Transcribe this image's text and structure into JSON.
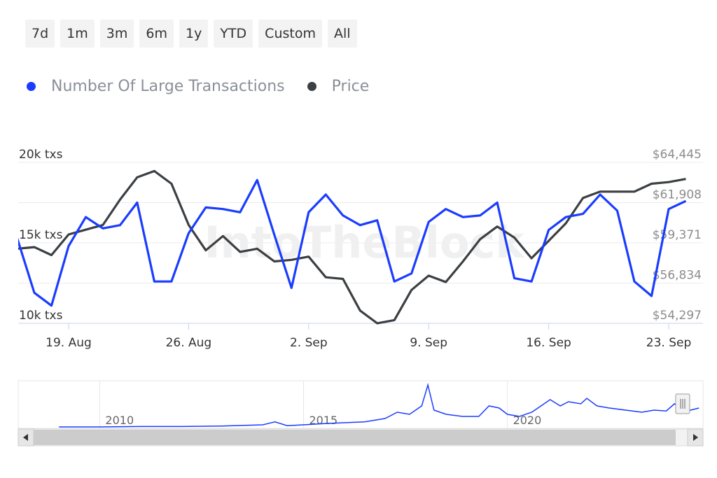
{
  "range_selector": {
    "buttons": [
      "7d",
      "1m",
      "3m",
      "6m",
      "1y",
      "YTD",
      "Custom",
      "All"
    ]
  },
  "legend": {
    "items": [
      {
        "label": "Number Of Large Transactions",
        "color": "#1a3cff"
      },
      {
        "label": "Price",
        "color": "#3c4043"
      }
    ]
  },
  "watermark": "IntoTheBlock",
  "navigator": {
    "year_labels": [
      "2010",
      "2015",
      "2020"
    ]
  },
  "chart_data": {
    "type": "line",
    "x_tick_labels": [
      "19. Aug",
      "26. Aug",
      "2. Sep",
      "9. Sep",
      "16. Sep",
      "23. Sep"
    ],
    "left_axis": {
      "labels": [
        "20k txs",
        "15k txs",
        "10k txs"
      ],
      "ylim": [
        10000,
        20000
      ]
    },
    "right_axis": {
      "labels": [
        "$64,445",
        "$61,908",
        "$59,371",
        "$56,834",
        "$54,297"
      ],
      "ylim": [
        54297,
        64445
      ]
    },
    "series": [
      {
        "name": "Number Of Large Transactions",
        "color": "#1a3cff",
        "axis": "left",
        "x": [
          "2024-08-16",
          "2024-08-17",
          "2024-08-18",
          "2024-08-19",
          "2024-08-20",
          "2024-08-21",
          "2024-08-22",
          "2024-08-23",
          "2024-08-24",
          "2024-08-25",
          "2024-08-26",
          "2024-08-27",
          "2024-08-28",
          "2024-08-29",
          "2024-08-30",
          "2024-08-31",
          "2024-09-01",
          "2024-09-02",
          "2024-09-03",
          "2024-09-04",
          "2024-09-05",
          "2024-09-06",
          "2024-09-07",
          "2024-09-08",
          "2024-09-09",
          "2024-09-10",
          "2024-09-11",
          "2024-09-12",
          "2024-09-13",
          "2024-09-14",
          "2024-09-15",
          "2024-09-16",
          "2024-09-17",
          "2024-09-18",
          "2024-09-19",
          "2024-09-20",
          "2024-09-21",
          "2024-09-22",
          "2024-09-23",
          "2024-09-24"
        ],
        "values": [
          15300,
          11900,
          11100,
          14800,
          16600,
          15900,
          16100,
          17500,
          12600,
          12600,
          15600,
          17200,
          17100,
          16900,
          18900,
          15500,
          12200,
          16900,
          18000,
          16700,
          16100,
          16400,
          12600,
          13100,
          16300,
          17100,
          16600,
          16700,
          17500,
          12800,
          12600,
          15800,
          16600,
          16800,
          18000,
          17000,
          12600,
          11700,
          17100,
          17600
        ]
      },
      {
        "name": "Price",
        "color": "#3c4043",
        "axis": "right",
        "x": [
          "2024-08-15",
          "2024-08-16",
          "2024-08-17",
          "2024-08-18",
          "2024-08-19",
          "2024-08-20",
          "2024-08-21",
          "2024-08-22",
          "2024-08-23",
          "2024-08-24",
          "2024-08-25",
          "2024-08-26",
          "2024-08-27",
          "2024-08-28",
          "2024-08-29",
          "2024-08-30",
          "2024-08-31",
          "2024-09-01",
          "2024-09-02",
          "2024-09-03",
          "2024-09-04",
          "2024-09-05",
          "2024-09-06",
          "2024-09-07",
          "2024-09-08",
          "2024-09-09",
          "2024-09-10",
          "2024-09-11",
          "2024-09-12",
          "2024-09-13",
          "2024-09-14",
          "2024-09-15",
          "2024-09-16",
          "2024-09-17",
          "2024-09-18",
          "2024-09-19",
          "2024-09-20",
          "2024-09-21",
          "2024-09-22",
          "2024-09-23",
          "2024-09-24"
        ],
        "values": [
          58100,
          59000,
          59100,
          58600,
          59900,
          60200,
          60500,
          62100,
          63500,
          63900,
          63100,
          60500,
          58900,
          59800,
          58800,
          59000,
          58200,
          58300,
          58500,
          57200,
          57100,
          55100,
          54300,
          54500,
          56400,
          57300,
          56900,
          58200,
          59600,
          60400,
          59700,
          58400,
          59500,
          60600,
          62200,
          62600,
          62600,
          62600,
          63100,
          63200,
          63400
        ]
      }
    ],
    "navigator_series": {
      "x": [
        2009.0,
        2010.0,
        2011.0,
        2012.0,
        2013.0,
        2014.0,
        2014.3,
        2014.6,
        2015.0,
        2015.5,
        2016.0,
        2016.5,
        2017.0,
        2017.3,
        2017.6,
        2017.9,
        2018.05,
        2018.2,
        2018.5,
        2018.9,
        2019.3,
        2019.55,
        2019.8,
        2020.0,
        2020.3,
        2020.6,
        2020.9,
        2021.05,
        2021.3,
        2021.5,
        2021.8,
        2021.95,
        2022.2,
        2022.5,
        2022.9,
        2023.3,
        2023.6,
        2023.9,
        2024.1,
        2024.3,
        2024.5,
        2024.7
      ],
      "values": [
        0.0,
        0.0,
        0.01,
        0.01,
        0.02,
        0.05,
        0.12,
        0.03,
        0.05,
        0.08,
        0.1,
        0.12,
        0.2,
        0.35,
        0.3,
        0.5,
        1.0,
        0.4,
        0.3,
        0.25,
        0.25,
        0.5,
        0.45,
        0.3,
        0.25,
        0.35,
        0.55,
        0.65,
        0.5,
        0.6,
        0.55,
        0.68,
        0.5,
        0.45,
        0.4,
        0.35,
        0.4,
        0.38,
        0.55,
        0.42,
        0.4,
        0.45
      ]
    },
    "navigator_xlim": [
      2008.0,
      2024.8
    ],
    "navigator_ylim": [
      0,
      1
    ]
  }
}
